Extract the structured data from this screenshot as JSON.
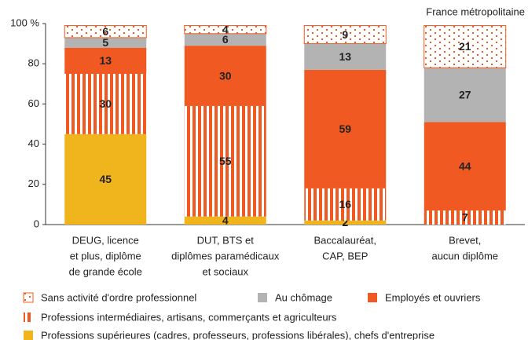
{
  "chart_data": {
    "type": "stacked-bar",
    "annotation": "France métropolitaine",
    "categories": [
      [
        "DEUG, licence",
        "et plus, diplôme",
        "de grande école"
      ],
      [
        "DUT, BTS et",
        "diplômes paramédicaux",
        "et sociaux"
      ],
      [
        "Baccalauréat,",
        "CAP, BEP"
      ],
      [
        "Brevet,",
        "aucun diplôme"
      ]
    ],
    "series": [
      {
        "name": "Professions supérieures (cadres, professeurs, professions libérales), chefs d'entreprise",
        "color": "#f0b41c",
        "values": [
          45,
          4,
          2,
          null
        ]
      },
      {
        "name": "Professions intermédiaires, artisans, commerçants et agriculteurs",
        "color": "#f05a22",
        "pattern": "stripes",
        "values": [
          30,
          55,
          16,
          7
        ]
      },
      {
        "name": "Employés et ouvriers",
        "color": "#f05a22",
        "values": [
          13,
          30,
          59,
          44
        ]
      },
      {
        "name": "Au chômage",
        "color": "#b3b3b3",
        "values": [
          5,
          6,
          13,
          27
        ]
      },
      {
        "name": "Sans activité d'ordre professionnel",
        "color": "#f05a22",
        "pattern": "dots",
        "values": [
          6,
          4,
          9,
          21
        ]
      }
    ],
    "ylim": [
      0,
      100
    ],
    "yticks": [
      0,
      20,
      40,
      60,
      80,
      {
        "value": 100,
        "label": "100 %"
      }
    ],
    "grid": false
  }
}
